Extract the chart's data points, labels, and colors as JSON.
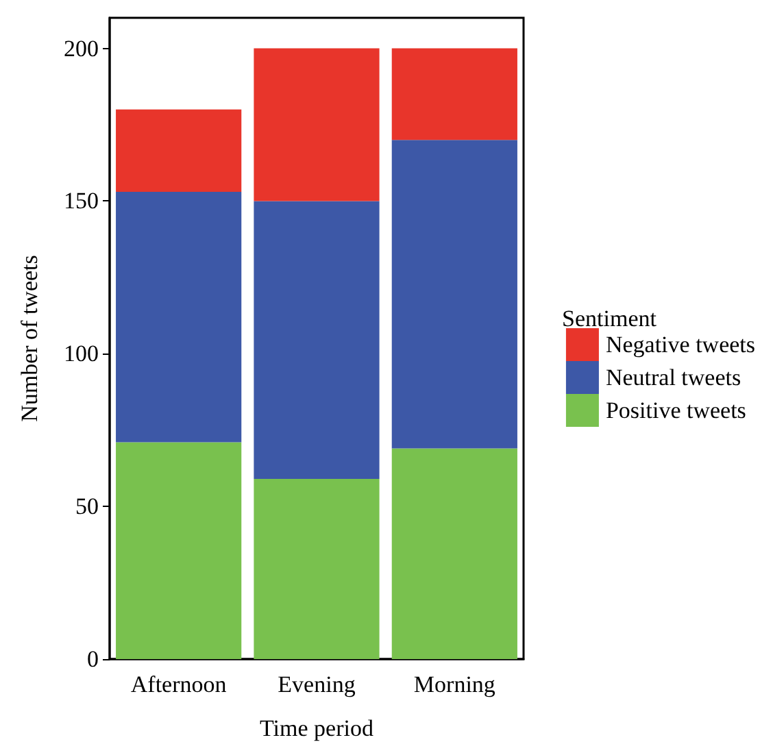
{
  "chart_data": {
    "type": "bar",
    "stacked": true,
    "xlabel": "Time period",
    "ylabel": "Number of tweets",
    "legend_title": "Sentiment",
    "categories": [
      "Afternoon",
      "Evening",
      "Morning"
    ],
    "series": [
      {
        "name": "Positive tweets",
        "color": "#79c14e",
        "values": [
          71,
          59,
          69
        ]
      },
      {
        "name": "Neutral tweets",
        "color": "#3d58a7",
        "values": [
          82,
          91,
          101
        ]
      },
      {
        "name": "Negative tweets",
        "color": "#e8352b",
        "values": [
          27,
          50,
          30
        ]
      }
    ],
    "ylim": [
      0,
      210
    ],
    "yticks": [
      0,
      50,
      100,
      150,
      200
    ],
    "grid": false,
    "legend": "right"
  }
}
